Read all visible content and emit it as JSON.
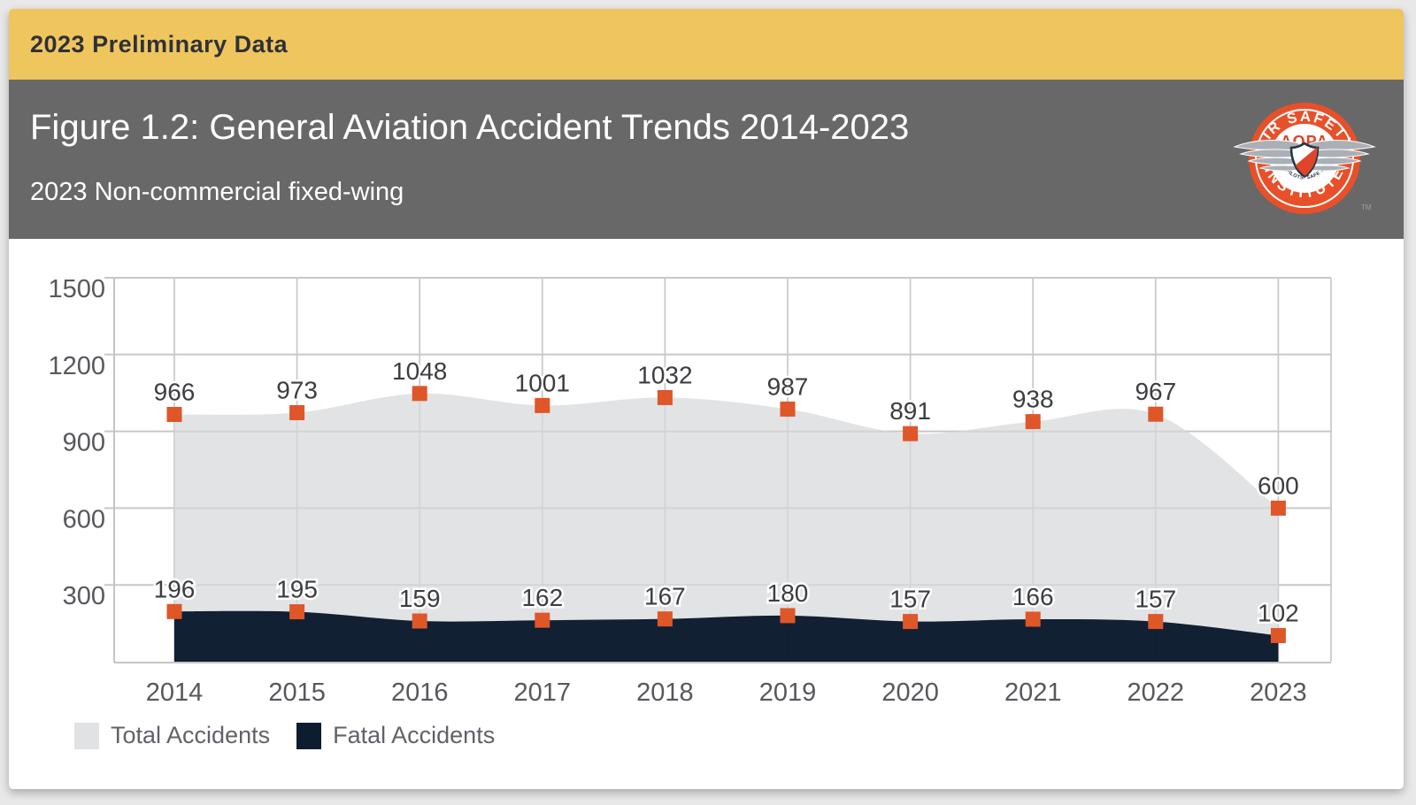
{
  "banner": {
    "label": "2023 Preliminary Data",
    "bg_color": "#efc55e",
    "text_color": "#2e3138"
  },
  "header": {
    "title": "Figure 1.2: General Aviation Accident Trends 2014-2023",
    "subtitle": "2023 Non-commercial fixed-wing",
    "bg_color": "#686868"
  },
  "logo": {
    "top_text": "AIR SAFETY",
    "bottom_text": "INSTITUTE",
    "center_text": "AOPA",
    "tagline": "SAFE PILOTS. SAFE SKIES.",
    "trademark": "TM",
    "ring_color": "#e8502a"
  },
  "chart_data": {
    "type": "area",
    "title": "Figure 1.2: General Aviation Accident Trends 2014-2023",
    "subtitle": "2023 Non-commercial fixed-wing",
    "categories": [
      "2014",
      "2015",
      "2016",
      "2017",
      "2018",
      "2019",
      "2020",
      "2021",
      "2022",
      "2023"
    ],
    "series": [
      {
        "name": "Total Accidents",
        "values": [
          966,
          973,
          1048,
          1001,
          1032,
          987,
          891,
          938,
          967,
          600
        ],
        "area_color": "#d7d8da",
        "area_opacity": 0.73
      },
      {
        "name": "Fatal Accidents",
        "values": [
          196,
          195,
          159,
          162,
          167,
          180,
          157,
          166,
          157,
          102
        ],
        "area_color": "#0c1c2f",
        "area_opacity": 0.98
      }
    ],
    "marker": {
      "shape": "square",
      "color": "#df5628",
      "size": 17
    },
    "ylim": [
      0,
      1500
    ],
    "yticks": [
      300,
      600,
      900,
      1200,
      1500
    ],
    "grid": true,
    "legend_position": "bottom",
    "gridline_color": "#c8c8c8",
    "axis_line_color": "#c4c4c4",
    "value_label_color": "#3b3d40",
    "axis_label_color": "#56585c"
  },
  "legend": {
    "items": [
      {
        "label": "Total Accidents",
        "color": "#e1e2e4"
      },
      {
        "label": "Fatal Accidents",
        "color": "#0d1d30"
      }
    ]
  }
}
